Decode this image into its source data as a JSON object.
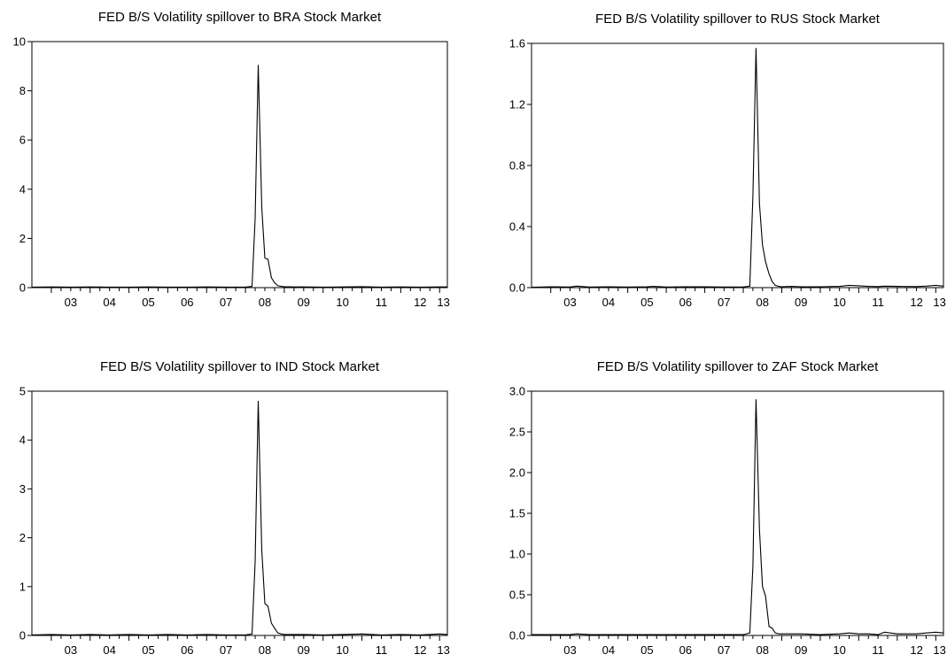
{
  "chart_data": [
    {
      "type": "line",
      "title": "FED B/S Volatility spillover to BRA Stock Market",
      "xlabel": "",
      "ylabel": "",
      "ylim": [
        0,
        10
      ],
      "xlim": [
        2002.5,
        2013.2
      ],
      "yticks": [
        0,
        2,
        4,
        6,
        8,
        10
      ],
      "ytick_labels": [
        "0",
        "2",
        "4",
        "6",
        "8",
        "10"
      ],
      "xtick_labels": [
        "03",
        "04",
        "05",
        "06",
        "07",
        "08",
        "09",
        "10",
        "11",
        "12",
        "13"
      ],
      "grid": false,
      "x": [
        2002.5,
        2003.0,
        2003.5,
        2004.0,
        2004.5,
        2005.0,
        2005.5,
        2006.0,
        2006.5,
        2007.0,
        2007.5,
        2008.0,
        2008.17,
        2008.25,
        2008.33,
        2008.42,
        2008.5,
        2008.58,
        2008.67,
        2008.75,
        2008.83,
        2008.92,
        2009.0,
        2009.25,
        2009.5,
        2010.0,
        2010.5,
        2011.0,
        2011.5,
        2012.0,
        2012.5,
        2013.0,
        2013.2
      ],
      "values": [
        0.02,
        0.03,
        0.02,
        0.03,
        0.02,
        0.02,
        0.03,
        0.02,
        0.02,
        0.03,
        0.02,
        0.02,
        0.05,
        2.8,
        9.05,
        3.25,
        1.2,
        1.15,
        0.4,
        0.2,
        0.08,
        0.05,
        0.04,
        0.03,
        0.03,
        0.02,
        0.03,
        0.04,
        0.02,
        0.03,
        0.02,
        0.03,
        0.03
      ]
    },
    {
      "type": "line",
      "title": "FED B/S Volatility spillover to RUS Stock Market",
      "xlabel": "",
      "ylabel": "",
      "ylim": [
        0,
        1.6
      ],
      "xlim": [
        2002.5,
        2013.2
      ],
      "yticks": [
        0,
        0.4,
        0.8,
        1.2,
        1.6
      ],
      "ytick_labels": [
        "0.0",
        "0.4",
        "0.8",
        "1.2",
        "1.6"
      ],
      "xtick_labels": [
        "03",
        "04",
        "05",
        "06",
        "07",
        "08",
        "09",
        "10",
        "11",
        "12",
        "13"
      ],
      "grid": false,
      "x": [
        2002.5,
        2003.0,
        2003.5,
        2003.67,
        2004.0,
        2004.5,
        2005.0,
        2005.5,
        2005.67,
        2006.0,
        2006.5,
        2007.0,
        2007.5,
        2008.0,
        2008.17,
        2008.25,
        2008.33,
        2008.42,
        2008.5,
        2008.58,
        2008.67,
        2008.75,
        2008.83,
        2008.92,
        2009.0,
        2009.25,
        2009.5,
        2010.0,
        2010.5,
        2010.75,
        2011.0,
        2011.25,
        2011.5,
        2011.67,
        2012.0,
        2012.5,
        2012.75,
        2013.0,
        2013.2
      ],
      "values": [
        0.003,
        0.005,
        0.004,
        0.01,
        0.004,
        0.005,
        0.004,
        0.005,
        0.008,
        0.004,
        0.005,
        0.005,
        0.004,
        0.004,
        0.01,
        0.6,
        1.57,
        0.55,
        0.28,
        0.17,
        0.09,
        0.04,
        0.015,
        0.008,
        0.006,
        0.008,
        0.006,
        0.006,
        0.008,
        0.015,
        0.012,
        0.008,
        0.007,
        0.01,
        0.008,
        0.007,
        0.01,
        0.015,
        0.01
      ]
    },
    {
      "type": "line",
      "title": "FED B/S Volatility spillover to IND Stock Market",
      "xlabel": "",
      "ylabel": "",
      "ylim": [
        0,
        5
      ],
      "xlim": [
        2002.5,
        2013.2
      ],
      "yticks": [
        0,
        1,
        2,
        3,
        4,
        5
      ],
      "ytick_labels": [
        "0",
        "1",
        "2",
        "3",
        "4",
        "5"
      ],
      "xtick_labels": [
        "03",
        "04",
        "05",
        "06",
        "07",
        "08",
        "09",
        "10",
        "11",
        "12",
        "13"
      ],
      "grid": false,
      "x": [
        2002.5,
        2003.0,
        2003.5,
        2004.0,
        2004.5,
        2005.0,
        2005.5,
        2006.0,
        2006.5,
        2007.0,
        2007.5,
        2008.0,
        2008.17,
        2008.25,
        2008.33,
        2008.42,
        2008.5,
        2008.58,
        2008.67,
        2008.75,
        2008.83,
        2008.92,
        2009.0,
        2009.25,
        2009.5,
        2010.0,
        2010.5,
        2011.0,
        2011.5,
        2012.0,
        2012.5,
        2013.0,
        2013.2
      ],
      "values": [
        0.01,
        0.02,
        0.01,
        0.02,
        0.01,
        0.02,
        0.01,
        0.02,
        0.01,
        0.02,
        0.01,
        0.01,
        0.03,
        1.5,
        4.8,
        1.75,
        0.65,
        0.6,
        0.25,
        0.15,
        0.05,
        0.03,
        0.02,
        0.02,
        0.02,
        0.01,
        0.02,
        0.03,
        0.01,
        0.02,
        0.01,
        0.03,
        0.02
      ]
    },
    {
      "type": "line",
      "title": "FED B/S Volatility spillover to ZAF Stock Market",
      "xlabel": "",
      "ylabel": "",
      "ylim": [
        0,
        3.0
      ],
      "xlim": [
        2002.5,
        2013.2
      ],
      "yticks": [
        0,
        0.5,
        1.0,
        1.5,
        2.0,
        2.5,
        3.0
      ],
      "ytick_labels": [
        "0.0",
        "0.5",
        "1.0",
        "1.5",
        "2.0",
        "2.5",
        "3.0"
      ],
      "xtick_labels": [
        "03",
        "04",
        "05",
        "06",
        "07",
        "08",
        "09",
        "10",
        "11",
        "12",
        "13"
      ],
      "grid": false,
      "x": [
        2002.5,
        2003.0,
        2003.5,
        2003.67,
        2004.0,
        2004.5,
        2005.0,
        2005.5,
        2006.0,
        2006.5,
        2007.0,
        2007.5,
        2008.0,
        2008.17,
        2008.25,
        2008.33,
        2008.42,
        2008.5,
        2008.58,
        2008.67,
        2008.75,
        2008.83,
        2008.92,
        2009.0,
        2009.25,
        2009.5,
        2010.0,
        2010.5,
        2010.75,
        2011.0,
        2011.25,
        2011.5,
        2011.67,
        2012.0,
        2012.5,
        2012.75,
        2013.0,
        2013.2
      ],
      "values": [
        0.01,
        0.01,
        0.01,
        0.02,
        0.01,
        0.01,
        0.01,
        0.01,
        0.01,
        0.01,
        0.01,
        0.01,
        0.01,
        0.03,
        0.85,
        2.9,
        1.3,
        0.6,
        0.48,
        0.11,
        0.09,
        0.03,
        0.02,
        0.02,
        0.02,
        0.02,
        0.01,
        0.02,
        0.03,
        0.02,
        0.02,
        0.01,
        0.04,
        0.02,
        0.02,
        0.03,
        0.04,
        0.03
      ]
    }
  ]
}
